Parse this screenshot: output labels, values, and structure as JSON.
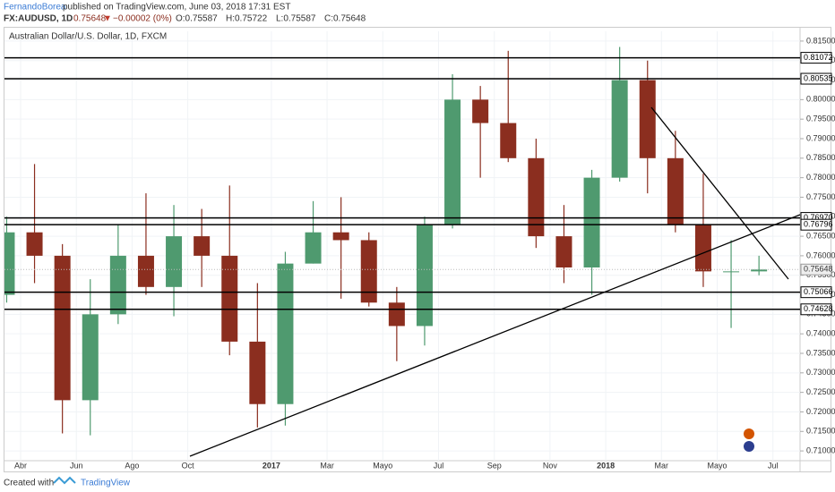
{
  "header": {
    "author": "FernandoBorea",
    "published": "published on TradingView.com, June 03, 2018 17:31 EST",
    "symbol": "FX:AUDUSD, 1D",
    "last": "0.75648",
    "change": "−0.00002 (0%)",
    "open": "O:0.75587",
    "high": "H:0.75722",
    "low": "L:0.75587",
    "close": "C:0.75648"
  },
  "chart_data": {
    "type": "candlestick",
    "title": "Australian Dollar/U.S. Dollar, 1D, FXCM",
    "categories": [
      null,
      "Abr",
      null,
      "Jun",
      null,
      "Ago",
      null,
      "Oct",
      null,
      null,
      "2017",
      null,
      "Mar",
      null,
      "Mayo",
      null,
      "Jul",
      null,
      "Sep",
      null,
      "Nov",
      null,
      "2018",
      null,
      "Mar",
      null,
      "Mayo",
      null,
      "Jul"
    ],
    "open": [
      0.75,
      0.766,
      0.76,
      0.723,
      0.745,
      0.76,
      0.752,
      0.765,
      0.76,
      0.738,
      0.722,
      0.758,
      0.766,
      0.764,
      0.748,
      0.742,
      0.768,
      0.8,
      0.794,
      0.785,
      0.765,
      0.757,
      0.78,
      0.805,
      0.785,
      0.768,
      0.756,
      0.756,
      null
    ],
    "high": [
      0.77,
      0.7835,
      0.763,
      0.754,
      0.768,
      0.776,
      0.773,
      0.772,
      0.778,
      0.753,
      0.761,
      0.774,
      0.775,
      0.766,
      0.752,
      0.77,
      0.8065,
      0.8035,
      0.8125,
      0.79,
      0.773,
      0.782,
      0.8135,
      0.81,
      0.792,
      0.781,
      0.764,
      0.76,
      null
    ],
    "low": [
      0.748,
      0.753,
      0.7145,
      0.714,
      0.7425,
      0.75,
      0.7445,
      0.752,
      0.7345,
      0.716,
      0.7165,
      0.758,
      0.749,
      0.747,
      0.733,
      0.737,
      0.767,
      0.78,
      0.784,
      0.762,
      0.753,
      0.75,
      0.779,
      0.776,
      0.766,
      0.752,
      0.7415,
      0.755,
      null
    ],
    "close": [
      0.766,
      0.76,
      0.723,
      0.745,
      0.76,
      0.752,
      0.765,
      0.76,
      0.738,
      0.722,
      0.758,
      0.766,
      0.764,
      0.748,
      0.742,
      0.768,
      0.8,
      0.794,
      0.785,
      0.765,
      0.757,
      0.78,
      0.805,
      0.785,
      0.768,
      0.756,
      0.756,
      0.75648,
      null
    ],
    "up_color": "#4f9a6f",
    "down_color": "#8b2e1f",
    "ylim": [
      0.7075,
      0.8175
    ],
    "yticks": [
      {
        "value": 0.71,
        "label": "0.71000"
      },
      {
        "value": 0.715,
        "label": "0.71500"
      },
      {
        "value": 0.72,
        "label": "0.72000"
      },
      {
        "value": 0.725,
        "label": "0.72500"
      },
      {
        "value": 0.73,
        "label": "0.73000"
      },
      {
        "value": 0.735,
        "label": "0.73500"
      },
      {
        "value": 0.74,
        "label": "0.74000"
      },
      {
        "value": 0.745,
        "label": "0.74500"
      },
      {
        "value": 0.75,
        "label": "0.75000"
      },
      {
        "value": 0.755,
        "label": "0.75500"
      },
      {
        "value": 0.76,
        "label": "0.76000"
      },
      {
        "value": 0.765,
        "label": "0.76500"
      },
      {
        "value": 0.77,
        "label": "0.77000"
      },
      {
        "value": 0.775,
        "label": "0.77500"
      },
      {
        "value": 0.78,
        "label": "0.78000"
      },
      {
        "value": 0.785,
        "label": "0.78500"
      },
      {
        "value": 0.79,
        "label": "0.79000"
      },
      {
        "value": 0.795,
        "label": "0.79500"
      },
      {
        "value": 0.8,
        "label": "0.80000"
      },
      {
        "value": 0.805,
        "label": "0.80500"
      },
      {
        "value": 0.81,
        "label": "0.81000"
      },
      {
        "value": 0.815,
        "label": "0.81500"
      }
    ],
    "levels": [
      0.81072,
      0.80535,
      {
        "value": 0.7697,
        "label": "0.76970"
      },
      0.76796,
      0.75066,
      0.74628
    ],
    "last_price": 0.75648,
    "grid": true
  },
  "footer": {
    "created": "Created with",
    "brand": "TradingView"
  }
}
